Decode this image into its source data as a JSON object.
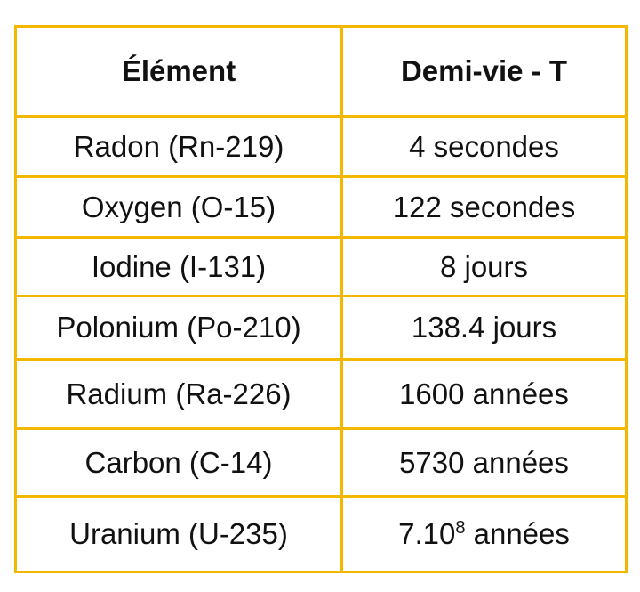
{
  "table": {
    "headers": [
      "Élément",
      "Demi-vie - T"
    ],
    "rows": [
      {
        "element": "Radon (Rn-219)",
        "half_life": "4 secondes"
      },
      {
        "element": "Oxygen (O-15)",
        "half_life": "122 secondes"
      },
      {
        "element": "Iodine (I-131)",
        "half_life": "8 jours"
      },
      {
        "element": "Polonium (Po-210)",
        "half_life": "138.4 jours"
      },
      {
        "element": "Radium (Ra-226)",
        "half_life": "1600 années"
      },
      {
        "element": "Carbon (C-14)",
        "half_life": "5730 années"
      },
      {
        "element": "Uranium (U-235)",
        "half_life_base": "7.10",
        "half_life_exponent": "8",
        "half_life_unit": " années"
      }
    ]
  },
  "colors": {
    "border": "#f2b800",
    "text": "#111111",
    "background": "#ffffff"
  }
}
